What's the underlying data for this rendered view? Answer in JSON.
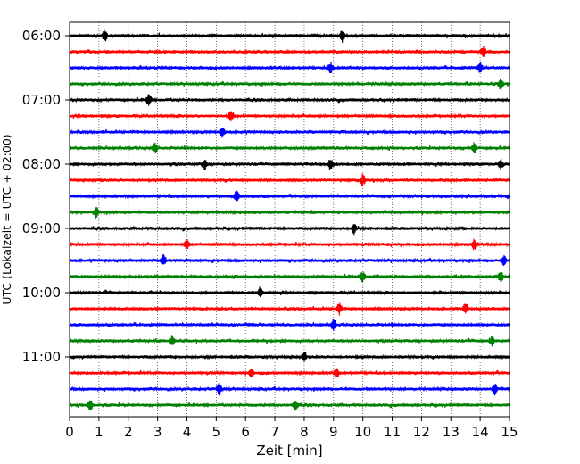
{
  "chart_data": {
    "type": "line",
    "title": "",
    "xlabel": "Zeit  [min]",
    "ylabel": "UTC (Lokalzeit = UTC + 02:00)",
    "xlim": [
      0,
      15
    ],
    "x_ticks": [
      "0",
      "1",
      "2",
      "3",
      "4",
      "5",
      "6",
      "7",
      "8",
      "9",
      "10",
      "11",
      "12",
      "13",
      "14",
      "15"
    ],
    "y_ticks": [
      "06:00",
      "07:00",
      "08:00",
      "09:00",
      "10:00",
      "11:00"
    ],
    "grid": "vertical dotted lines at each minute",
    "legend": "none",
    "color_cycle": [
      "#000000",
      "#ff0000",
      "#0000ff",
      "#008000"
    ],
    "row_interval_minutes": 15,
    "row_start_times": [
      "06:00",
      "06:15",
      "06:30",
      "06:45",
      "07:00",
      "07:15",
      "07:30",
      "07:45",
      "08:00",
      "08:15",
      "08:30",
      "08:45",
      "09:00",
      "09:15",
      "09:30",
      "09:45",
      "10:00",
      "10:15",
      "10:30",
      "10:45",
      "11:00",
      "11:15",
      "11:30",
      "11:45"
    ],
    "series_description": "Helicorder seismogram: one horizontal trace per 15-minute interval, colours cycling black, red, blue, green",
    "notable_events_minutes": [
      [
        1.2,
        9.3
      ],
      [
        14.1
      ],
      [
        8.9,
        14.0
      ],
      [
        14.7
      ],
      [
        2.7
      ],
      [
        5.5
      ],
      [
        5.2
      ],
      [
        2.9,
        13.8
      ],
      [
        4.6,
        8.9,
        14.7
      ],
      [
        10.0
      ],
      [
        5.7
      ],
      [
        0.9
      ],
      [
        9.7
      ],
      [
        4.0,
        13.8
      ],
      [
        3.2,
        14.8
      ],
      [
        10.0,
        14.7
      ],
      [
        6.5
      ],
      [
        9.2,
        13.5
      ],
      [
        9.0
      ],
      [
        3.5,
        14.4
      ],
      [
        8.0
      ],
      [
        6.2,
        9.1
      ],
      [
        5.1,
        14.5
      ],
      [
        0.7,
        7.7
      ]
    ]
  }
}
